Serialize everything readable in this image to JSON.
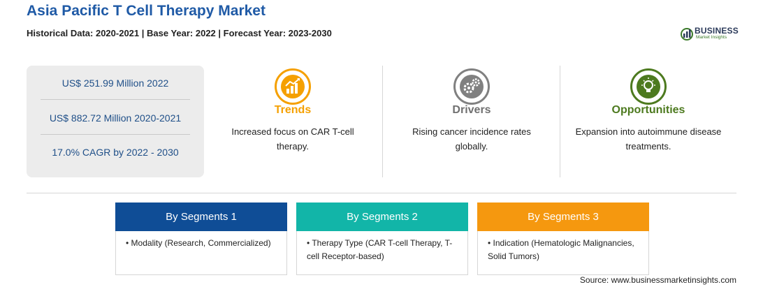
{
  "header": {
    "title": "Asia Pacific T Cell Therapy Market",
    "subtitle": "Historical Data: 2020-2021 | Base Year: 2022 | Forecast Year: 2023-2030"
  },
  "logo": {
    "name": "BUSINESS",
    "tagline": "Market Insights"
  },
  "stats": [
    "US$ 251.99 Million 2022",
    "US$ 882.72 Million 2020-2021",
    "17.0% CAGR by 2022 - 2030"
  ],
  "columns": [
    {
      "heading": "Trends",
      "text": "Increased focus on CAR T-cell therapy.",
      "color": "#f5a000",
      "icon": "trend-chart-icon"
    },
    {
      "heading": "Drivers",
      "text": "Rising cancer incidence rates globally.",
      "color": "#808080",
      "icon": "gears-icon"
    },
    {
      "heading": "Opportunities",
      "text": "Expansion into autoimmune disease treatments.",
      "color": "#4d7a1f",
      "icon": "lightbulb-icon"
    }
  ],
  "segments": [
    {
      "title": "By Segments 1",
      "color": "#0f4d96",
      "item": "Modality (Research, Commercialized)"
    },
    {
      "title": "By Segments 2",
      "color": "#12b5a8",
      "item": "Therapy Type (CAR T-cell Therapy, T-cell Receptor-based)"
    },
    {
      "title": "By Segments 3",
      "color": "#f5980f",
      "item": "Indication (Hematologic Malignancies, Solid Tumors)"
    }
  ],
  "source": "Source: www.businessmarketinsights.com"
}
